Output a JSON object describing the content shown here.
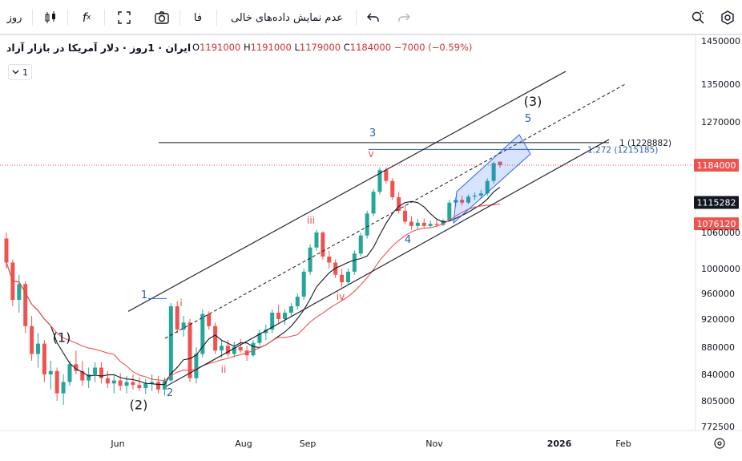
{
  "toolbar": {
    "interval": "روز",
    "candles_icon": "candles-icon",
    "indicators_icon": "fx-icon",
    "fullscreen_icon": "fullscreen-icon",
    "screenshot_icon": "camera-icon",
    "lang": "فا",
    "hide_empty": "عدم نمایش داده‌های خالی",
    "undo_icon": "undo-icon",
    "redo_icon": "redo-icon",
    "search_icon": "search-icon",
    "settings_icon": "settings-icon"
  },
  "legend": {
    "symbol": "ایران · 1روز · دلار آمریکا در بازار آزاد",
    "o_label": "O",
    "o": "1191000",
    "h_label": "H",
    "h": "1191000",
    "l_label": "L",
    "l": "1179000",
    "c_label": "C",
    "c": "1184000",
    "change": "−7000 (−0.59%)",
    "collapse": "1"
  },
  "colors": {
    "up": "#26a69a",
    "down": "#ef5350",
    "price_tag": "#ef5350",
    "ma1_tag": "#131722",
    "ma2_tag": "#ef5350",
    "wave_red": "#e05252",
    "wave_blue": "#2f5fa8",
    "channel": "#131722"
  },
  "chart_data": {
    "type": "candlestick",
    "title": "",
    "y_ticks": [
      "1450000",
      "1350000",
      "1270000",
      "1184000",
      "1115282",
      "1076120",
      "1060000",
      "1000000",
      "960000",
      "920000",
      "880000",
      "840000",
      "805000",
      "772500"
    ],
    "y_tick_values": [
      1450000,
      1350000,
      1270000,
      1184000,
      1115282,
      1076120,
      1060000,
      1000000,
      960000,
      920000,
      880000,
      840000,
      805000,
      772500
    ],
    "x_ticks": [
      "Jun",
      "Aug",
      "Sep",
      "Nov",
      "2026",
      "Feb"
    ],
    "last_price": "1184000",
    "ma_fast_value": "1115282",
    "ma_slow_value": "1076120",
    "fib": [
      {
        "label": "1 (1228882)",
        "value": 1228882
      },
      {
        "label": "1.272 (1215185)",
        "value": 1215185
      }
    ],
    "wave_labels": [
      {
        "text": "(1)",
        "color": "black"
      },
      {
        "text": "(2)",
        "color": "black"
      },
      {
        "text": "(3)",
        "color": "black"
      },
      {
        "text": "1",
        "color": "blue"
      },
      {
        "text": "2",
        "color": "blue"
      },
      {
        "text": "3",
        "color": "blue"
      },
      {
        "text": "4",
        "color": "blue"
      },
      {
        "text": "5",
        "color": "blue"
      },
      {
        "text": "i",
        "color": "red"
      },
      {
        "text": "ii",
        "color": "red"
      },
      {
        "text": "iii",
        "color": "red"
      },
      {
        "text": "iv",
        "color": "red"
      },
      {
        "text": "v",
        "color": "red"
      }
    ],
    "key_prices": [
      {
        "label": "(1)",
        "value": 870000
      },
      {
        "label": "(2)",
        "value": 810000
      },
      {
        "label": "1",
        "value": 942000
      },
      {
        "label": "2",
        "value": 830000
      },
      {
        "label": "i",
        "value": 930000
      },
      {
        "label": "ii",
        "value": 866000
      },
      {
        "label": "iii",
        "value": 1060000
      },
      {
        "label": "iv",
        "value": 975000
      },
      {
        "label": "v",
        "value": 1180000
      },
      {
        "label": "4",
        "value": 1070000
      },
      {
        "label": "last",
        "value": 1184000
      }
    ],
    "candles_ohlc": [
      [
        1050000,
        1060000,
        1000000,
        1010000
      ],
      [
        1010000,
        1015000,
        940000,
        950000
      ],
      [
        950000,
        990000,
        930000,
        975000
      ],
      [
        975000,
        980000,
        900000,
        910000
      ],
      [
        910000,
        925000,
        860000,
        870000
      ],
      [
        870000,
        900000,
        850000,
        885000
      ],
      [
        885000,
        890000,
        830000,
        840000
      ],
      [
        840000,
        860000,
        820000,
        845000
      ],
      [
        845000,
        850000,
        805000,
        815000
      ],
      [
        815000,
        840000,
        800000,
        830000
      ],
      [
        830000,
        860000,
        825000,
        855000
      ],
      [
        855000,
        875000,
        840000,
        845000
      ],
      [
        845000,
        860000,
        825000,
        832000
      ],
      [
        832000,
        850000,
        822000,
        840000
      ],
      [
        840000,
        858000,
        830000,
        850000
      ],
      [
        850000,
        858000,
        828000,
        835000
      ],
      [
        835000,
        845000,
        822000,
        828000
      ],
      [
        828000,
        840000,
        815000,
        832000
      ],
      [
        832000,
        842000,
        818000,
        825000
      ],
      [
        825000,
        838000,
        815000,
        830000
      ],
      [
        830000,
        840000,
        820000,
        826000
      ],
      [
        826000,
        836000,
        818000,
        822000
      ],
      [
        822000,
        834000,
        814000,
        828000
      ],
      [
        828000,
        840000,
        818000,
        830000
      ],
      [
        830000,
        838000,
        815000,
        820000
      ],
      [
        820000,
        836000,
        812000,
        832000
      ],
      [
        832000,
        945000,
        830000,
        940000
      ],
      [
        940000,
        948000,
        900000,
        905000
      ],
      [
        905000,
        925000,
        895000,
        915000
      ],
      [
        915000,
        920000,
        830000,
        835000
      ],
      [
        835000,
        880000,
        828000,
        870000
      ],
      [
        870000,
        935000,
        865000,
        928000
      ],
      [
        928000,
        932000,
        905000,
        910000
      ],
      [
        910000,
        915000,
        870000,
        875000
      ],
      [
        875000,
        890000,
        865000,
        882000
      ],
      [
        882000,
        890000,
        866000,
        870000
      ],
      [
        870000,
        888000,
        865000,
        880000
      ],
      [
        880000,
        892000,
        872000,
        875000
      ],
      [
        875000,
        882000,
        860000,
        868000
      ],
      [
        868000,
        890000,
        866000,
        886000
      ],
      [
        886000,
        905000,
        882000,
        900000
      ],
      [
        900000,
        912000,
        890000,
        905000
      ],
      [
        905000,
        935000,
        900000,
        930000
      ],
      [
        930000,
        942000,
        915000,
        920000
      ],
      [
        920000,
        935000,
        912000,
        930000
      ],
      [
        930000,
        945000,
        925000,
        940000
      ],
      [
        940000,
        960000,
        935000,
        955000
      ],
      [
        955000,
        1000000,
        950000,
        995000
      ],
      [
        995000,
        1040000,
        990000,
        1035000
      ],
      [
        1035000,
        1065000,
        1030000,
        1060000
      ],
      [
        1060000,
        1062000,
        1015000,
        1020000
      ],
      [
        1020000,
        1030000,
        1000000,
        1010000
      ],
      [
        1010000,
        1015000,
        985000,
        990000
      ],
      [
        990000,
        1000000,
        970000,
        978000
      ],
      [
        978000,
        1000000,
        975000,
        995000
      ],
      [
        995000,
        1030000,
        990000,
        1025000
      ],
      [
        1025000,
        1060000,
        1020000,
        1055000
      ],
      [
        1055000,
        1100000,
        1050000,
        1095000
      ],
      [
        1095000,
        1140000,
        1090000,
        1135000
      ],
      [
        1135000,
        1180000,
        1130000,
        1175000
      ],
      [
        1175000,
        1180000,
        1150000,
        1155000
      ],
      [
        1155000,
        1160000,
        1120000,
        1125000
      ],
      [
        1125000,
        1135000,
        1095000,
        1100000
      ],
      [
        1100000,
        1110000,
        1075000,
        1080000
      ],
      [
        1080000,
        1090000,
        1065000,
        1072000
      ],
      [
        1072000,
        1085000,
        1066000,
        1078000
      ],
      [
        1078000,
        1086000,
        1068000,
        1072000
      ],
      [
        1072000,
        1082000,
        1068000,
        1076000
      ],
      [
        1076000,
        1084000,
        1070000,
        1074000
      ],
      [
        1074000,
        1085000,
        1072000,
        1082000
      ],
      [
        1082000,
        1120000,
        1080000,
        1115000
      ],
      [
        1115000,
        1125000,
        1108000,
        1120000
      ],
      [
        1120000,
        1128000,
        1110000,
        1115000
      ],
      [
        1115000,
        1130000,
        1112000,
        1126000
      ],
      [
        1126000,
        1134000,
        1120000,
        1128000
      ],
      [
        1128000,
        1138000,
        1122000,
        1132000
      ],
      [
        1132000,
        1160000,
        1128000,
        1155000
      ],
      [
        1155000,
        1191000,
        1150000,
        1188000
      ],
      [
        1191000,
        1191000,
        1179000,
        1184000
      ]
    ]
  }
}
